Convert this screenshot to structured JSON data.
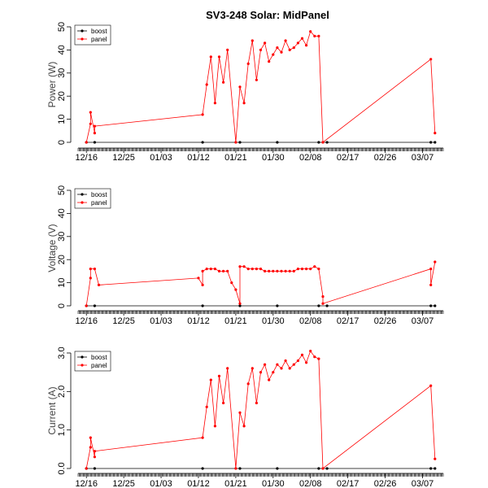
{
  "title": "SV3-248 Solar: MidPanel",
  "colors": {
    "boost": "#000000",
    "panel": "#ff0000"
  },
  "chart_data": [
    {
      "type": "line",
      "ylabel": "Power (W)",
      "ylim": [
        0,
        50
      ],
      "yticks": [
        "0",
        "10",
        "20",
        "30",
        "40",
        "50"
      ],
      "x_axis": {
        "type": "date",
        "range": [
          "2025-12-14",
          "2026-03-12"
        ],
        "ticks": [
          "12/16",
          "12/25",
          "01/03",
          "01/12",
          "01/21",
          "01/30",
          "02/08",
          "02/17",
          "02/26",
          "03/07"
        ]
      },
      "legend": {
        "position": "top-left",
        "entries": [
          "boost",
          "panel"
        ]
      },
      "series": [
        {
          "name": "boost",
          "x": [
            "12/16",
            "12/18",
            "01/13",
            "01/22",
            "01/31",
            "02/10",
            "02/12",
            "03/09",
            "03/10"
          ],
          "y": [
            0,
            0,
            0,
            0,
            0,
            0,
            0,
            0,
            0
          ]
        },
        {
          "name": "panel",
          "x": [
            "12/16",
            "12/17",
            "12/17",
            "12/18",
            "12/18",
            "01/13",
            "01/14",
            "01/15",
            "01/16",
            "01/17",
            "01/18",
            "01/19",
            "01/21",
            "01/22",
            "01/23",
            "01/24",
            "01/25",
            "01/26",
            "01/27",
            "01/28",
            "01/29",
            "01/30",
            "01/31",
            "02/01",
            "02/02",
            "02/03",
            "02/04",
            "02/05",
            "02/06",
            "02/07",
            "02/08",
            "02/09",
            "02/10",
            "02/11",
            "03/09",
            "03/10"
          ],
          "y": [
            0,
            8,
            13,
            4,
            7,
            12,
            25,
            37,
            17,
            37,
            26,
            40,
            0,
            24,
            17,
            34,
            44,
            27,
            40,
            43,
            35,
            38,
            41,
            39,
            44,
            40,
            41,
            43,
            45,
            42,
            48,
            46,
            46,
            0,
            36,
            4
          ]
        }
      ]
    },
    {
      "type": "line",
      "ylabel": "Voltage (V)",
      "ylim": [
        0,
        50
      ],
      "yticks": [
        "0",
        "10",
        "20",
        "30",
        "40",
        "50"
      ],
      "x_axis": {
        "type": "date",
        "range": [
          "2025-12-14",
          "2026-03-12"
        ],
        "ticks": [
          "12/16",
          "12/25",
          "01/03",
          "01/12",
          "01/21",
          "01/30",
          "02/08",
          "02/17",
          "02/26",
          "03/07"
        ]
      },
      "legend": {
        "position": "top-left",
        "entries": [
          "boost",
          "panel"
        ]
      },
      "series": [
        {
          "name": "boost",
          "x": [
            "12/16",
            "12/18",
            "01/13",
            "01/22",
            "01/31",
            "02/10",
            "02/12",
            "03/09",
            "03/10"
          ],
          "y": [
            0,
            0,
            0,
            0,
            0,
            0,
            0,
            0,
            0
          ]
        },
        {
          "name": "panel",
          "x": [
            "12/16",
            "12/17",
            "12/17",
            "12/18",
            "12/19",
            "01/12",
            "01/13",
            "01/13",
            "01/14",
            "01/15",
            "01/16",
            "01/17",
            "01/18",
            "01/19",
            "01/20",
            "01/21",
            "01/22",
            "01/22",
            "01/23",
            "01/24",
            "01/25",
            "01/26",
            "01/27",
            "01/28",
            "01/29",
            "01/30",
            "01/31",
            "02/01",
            "02/02",
            "02/03",
            "02/04",
            "02/05",
            "02/06",
            "02/07",
            "02/08",
            "02/09",
            "02/10",
            "02/11",
            "02/11",
            "03/09",
            "03/09",
            "03/10"
          ],
          "y": [
            0,
            12,
            16,
            16,
            9,
            12,
            9,
            15,
            16,
            16,
            16,
            15,
            15,
            15,
            10,
            7,
            1,
            17,
            17,
            16,
            16,
            16,
            16,
            15,
            15,
            15,
            15,
            15,
            15,
            15,
            15,
            16,
            16,
            16,
            16,
            17,
            16,
            4,
            1,
            16,
            9,
            19
          ]
        }
      ]
    },
    {
      "type": "line",
      "ylabel": "Current (A)",
      "ylim": [
        0,
        3
      ],
      "yticks": [
        "0.0",
        "1.0",
        "2.0",
        "3.0"
      ],
      "x_axis": {
        "type": "date",
        "range": [
          "2025-12-14",
          "2026-03-12"
        ],
        "ticks": [
          "12/16",
          "12/25",
          "01/03",
          "01/12",
          "01/21",
          "01/30",
          "02/08",
          "02/17",
          "02/26",
          "03/07"
        ]
      },
      "legend": {
        "position": "top-left",
        "entries": [
          "boost",
          "panel"
        ]
      },
      "series": [
        {
          "name": "boost",
          "x": [
            "12/16",
            "12/18",
            "01/13",
            "01/22",
            "01/31",
            "02/10",
            "02/12",
            "03/09",
            "03/10"
          ],
          "y": [
            0,
            0,
            0,
            0,
            0,
            0,
            0,
            0,
            0
          ]
        },
        {
          "name": "panel",
          "x": [
            "12/16",
            "12/17",
            "12/17",
            "12/18",
            "12/18",
            "01/13",
            "01/14",
            "01/15",
            "01/16",
            "01/17",
            "01/18",
            "01/19",
            "01/21",
            "01/22",
            "01/23",
            "01/24",
            "01/25",
            "01/26",
            "01/27",
            "01/28",
            "01/29",
            "01/30",
            "01/31",
            "02/01",
            "02/02",
            "02/03",
            "02/04",
            "02/05",
            "02/06",
            "02/07",
            "02/08",
            "02/09",
            "02/10",
            "02/11",
            "03/09",
            "03/10"
          ],
          "y": [
            0,
            0.55,
            0.8,
            0.3,
            0.45,
            0.8,
            1.6,
            2.3,
            1.1,
            2.4,
            1.7,
            2.6,
            0,
            1.45,
            1.1,
            2.2,
            2.6,
            1.7,
            2.5,
            2.7,
            2.3,
            2.5,
            2.7,
            2.6,
            2.8,
            2.6,
            2.7,
            2.8,
            2.95,
            2.75,
            3.05,
            2.9,
            2.85,
            0,
            2.15,
            0.25
          ]
        }
      ]
    }
  ]
}
